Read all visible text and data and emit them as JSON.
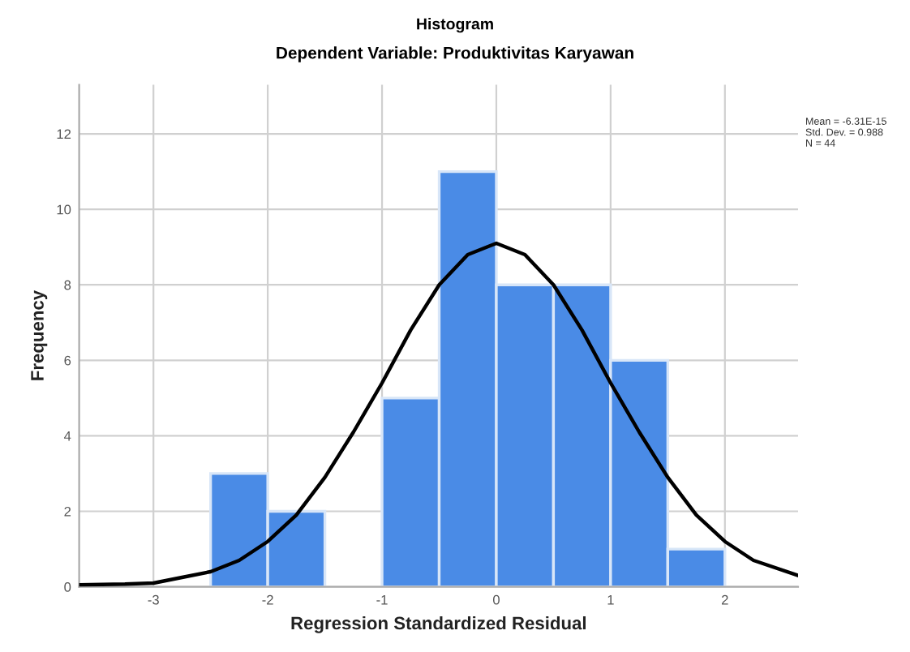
{
  "chart_data": {
    "type": "histogram",
    "title": "Histogram",
    "subtitle": "Dependent Variable: Produktivitas Karyawan",
    "xlabel": "Regression Standardized Residual",
    "ylabel": "Frequency",
    "bins": [
      -2.5,
      -2,
      -1.5,
      -1,
      -0.5,
      0,
      0.5,
      1,
      1.5,
      2
    ],
    "values": [
      3,
      2,
      0,
      5,
      11,
      8,
      8,
      6,
      1
    ],
    "color": "#4a8be6",
    "series": [
      {
        "type": "line",
        "color": "#000000",
        "x": [
          -3.65,
          -3.25,
          -3,
          -2.75,
          -2.5,
          -2.25,
          -2,
          -1.75,
          -1.5,
          -1.25,
          -1,
          -0.75,
          -0.5,
          -0.25,
          0,
          0.25,
          0.5,
          0.75,
          1,
          1.25,
          1.5,
          1.75,
          2,
          2.25,
          2.64
        ],
        "values": [
          0.05,
          0.07,
          0.1,
          0.25,
          0.4,
          0.7,
          1.2,
          1.9,
          2.9,
          4.1,
          5.4,
          6.8,
          8.0,
          8.8,
          9.1,
          8.8,
          8.0,
          6.8,
          5.4,
          4.1,
          2.9,
          1.9,
          1.2,
          0.7,
          0.3
        ]
      }
    ],
    "xlim": [
      -3.65,
      2.64
    ],
    "ylim": [
      0,
      13.3
    ],
    "xticks": [
      -3,
      -2,
      -1,
      0,
      1,
      2
    ],
    "yticks": [
      0,
      2,
      4,
      6,
      8,
      10,
      12
    ],
    "grid": true,
    "annotations": [
      "Mean = -6.31E-15\nStd. Dev. = 0.988\nN = 44"
    ]
  }
}
